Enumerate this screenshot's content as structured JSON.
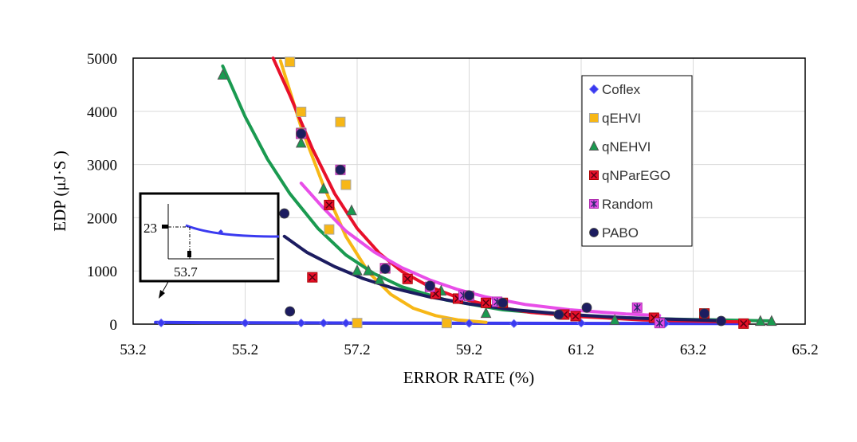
{
  "chart_data": {
    "type": "scatter",
    "title": "",
    "xlabel": "ERROR RATE (%)",
    "ylabel": "EDP (μJ·S )",
    "xlim": [
      53.2,
      65.2
    ],
    "ylim": [
      0,
      5000
    ],
    "x_ticks": [
      "53.2",
      "55.2",
      "57.2",
      "59.2",
      "61.2",
      "63.2",
      "65.2"
    ],
    "y_ticks": [
      "0",
      "1000",
      "2000",
      "3000",
      "4000",
      "5000"
    ],
    "grid": true,
    "legend_position": "top-right",
    "series": [
      {
        "name": "Coflex",
        "marker": "diamond",
        "color": "#3a3af0",
        "points": [
          [
            53.7,
            23
          ],
          [
            55.2,
            22
          ],
          [
            56.2,
            21
          ],
          [
            56.6,
            21
          ],
          [
            57.0,
            20
          ],
          [
            59.2,
            15
          ],
          [
            60.0,
            10
          ],
          [
            61.2,
            20
          ],
          [
            62.7,
            12
          ]
        ],
        "trend": [
          [
            53.6,
            35
          ],
          [
            54.5,
            28
          ],
          [
            56.0,
            24
          ],
          [
            58.0,
            20
          ],
          [
            60.0,
            16
          ],
          [
            62.0,
            13
          ],
          [
            64.0,
            10
          ]
        ]
      },
      {
        "name": "qEHVI",
        "marker": "square",
        "color": "#f7b716",
        "points": [
          [
            56.0,
            4930
          ],
          [
            56.2,
            3990
          ],
          [
            56.2,
            3600
          ],
          [
            56.9,
            3800
          ],
          [
            57.0,
            2620
          ],
          [
            56.7,
            1780
          ],
          [
            57.2,
            20
          ],
          [
            58.8,
            20
          ]
        ],
        "trend": [
          [
            55.83,
            4950
          ],
          [
            56.2,
            3700
          ],
          [
            56.6,
            2600
          ],
          [
            57.0,
            1650
          ],
          [
            57.4,
            980
          ],
          [
            57.8,
            560
          ],
          [
            58.2,
            300
          ],
          [
            58.6,
            160
          ],
          [
            59.0,
            80
          ],
          [
            59.5,
            35
          ]
        ]
      },
      {
        "name": "qNEHVI",
        "marker": "triangle",
        "color": "#1a9a50",
        "points": [
          [
            54.8,
            4680
          ],
          [
            56.2,
            3400
          ],
          [
            56.6,
            2540
          ],
          [
            57.1,
            2130
          ],
          [
            57.2,
            1000
          ],
          [
            57.4,
            1000
          ],
          [
            57.6,
            830
          ],
          [
            58.7,
            620
          ],
          [
            59.5,
            200
          ],
          [
            61.8,
            70
          ],
          [
            64.4,
            50
          ],
          [
            64.6,
            50
          ]
        ],
        "trend": [
          [
            54.8,
            4850
          ],
          [
            55.2,
            3900
          ],
          [
            55.6,
            3100
          ],
          [
            56.0,
            2450
          ],
          [
            56.5,
            1800
          ],
          [
            57.0,
            1300
          ],
          [
            57.5,
            950
          ],
          [
            58.0,
            700
          ],
          [
            58.8,
            450
          ],
          [
            59.8,
            270
          ],
          [
            61.0,
            160
          ],
          [
            62.5,
            100
          ],
          [
            64.6,
            60
          ]
        ]
      },
      {
        "name": "qNParEGO",
        "marker": "box-x",
        "color": "#e8102a",
        "points": [
          [
            56.2,
            3580
          ],
          [
            56.7,
            2240
          ],
          [
            56.4,
            880
          ],
          [
            57.7,
            1050
          ],
          [
            58.1,
            850
          ],
          [
            58.6,
            570
          ],
          [
            59.0,
            480
          ],
          [
            59.5,
            400
          ],
          [
            59.8,
            400
          ],
          [
            60.9,
            180
          ],
          [
            61.1,
            150
          ],
          [
            62.5,
            120
          ],
          [
            63.4,
            200
          ],
          [
            64.1,
            10
          ]
        ],
        "trend": [
          [
            55.7,
            5000
          ],
          [
            56.0,
            4300
          ],
          [
            56.4,
            3300
          ],
          [
            56.8,
            2450
          ],
          [
            57.2,
            1800
          ],
          [
            57.6,
            1330
          ],
          [
            58.0,
            990
          ],
          [
            58.5,
            700
          ],
          [
            59.0,
            500
          ],
          [
            59.6,
            340
          ],
          [
            60.3,
            220
          ],
          [
            61.2,
            140
          ],
          [
            62.3,
            80
          ],
          [
            63.5,
            50
          ],
          [
            64.2,
            40
          ]
        ]
      },
      {
        "name": "Random",
        "marker": "star",
        "color": "#e84ee8",
        "points": [
          [
            56.2,
            3580
          ],
          [
            56.9,
            2900
          ],
          [
            57.7,
            1050
          ],
          [
            58.5,
            700
          ],
          [
            59.1,
            540
          ],
          [
            59.2,
            530
          ],
          [
            59.7,
            420
          ],
          [
            62.2,
            310
          ],
          [
            62.6,
            20
          ]
        ],
        "trend": [
          [
            56.2,
            2650
          ],
          [
            56.6,
            2180
          ],
          [
            57.0,
            1750
          ],
          [
            57.5,
            1360
          ],
          [
            58.0,
            1060
          ],
          [
            58.5,
            830
          ],
          [
            59.0,
            650
          ],
          [
            59.5,
            510
          ],
          [
            60.2,
            370
          ],
          [
            61.0,
            270
          ],
          [
            62.0,
            190
          ],
          [
            62.6,
            160
          ]
        ]
      },
      {
        "name": "PABO",
        "marker": "circle",
        "color": "#1c1c60",
        "points": [
          [
            55.9,
            2080
          ],
          [
            56.0,
            240
          ],
          [
            56.2,
            3580
          ],
          [
            56.9,
            2900
          ],
          [
            57.7,
            1040
          ],
          [
            58.5,
            720
          ],
          [
            59.2,
            540
          ],
          [
            59.8,
            400
          ],
          [
            60.8,
            180
          ],
          [
            61.3,
            310
          ],
          [
            63.4,
            200
          ],
          [
            63.7,
            60
          ]
        ],
        "trend": [
          [
            55.9,
            1650
          ],
          [
            56.3,
            1350
          ],
          [
            56.8,
            1080
          ],
          [
            57.3,
            860
          ],
          [
            57.8,
            690
          ],
          [
            58.5,
            510
          ],
          [
            59.2,
            380
          ],
          [
            60.0,
            270
          ],
          [
            61.0,
            180
          ],
          [
            62.0,
            120
          ],
          [
            63.0,
            85
          ],
          [
            63.7,
            65
          ]
        ]
      }
    ],
    "inset": {
      "x_label": "53.7",
      "y_label": "23",
      "series": "Coflex"
    }
  }
}
